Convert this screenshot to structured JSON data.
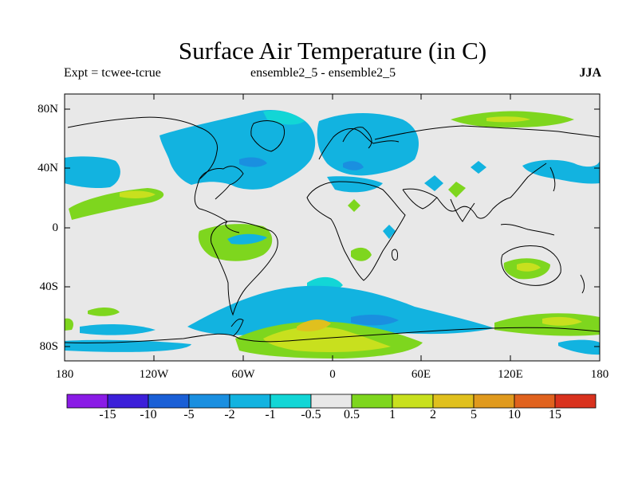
{
  "title": "Surface Air Temperature (in C)",
  "subtitle_left": "Expt = tcwee-tcrue",
  "subtitle_center": "ensemble2_5 - ensemble2_5",
  "subtitle_right": "JJA",
  "lat_labels": [
    "80N",
    "40N",
    "0",
    "40S",
    "80S"
  ],
  "lon_labels": [
    "180",
    "120W",
    "60W",
    "0",
    "60E",
    "120E",
    "180"
  ],
  "chart_data": {
    "type": "heatmap",
    "title": "Surface Air Temperature (in C)",
    "projection": "cylindrical equidistant",
    "lon_range": [
      -180,
      180
    ],
    "lat_range": [
      -90,
      90
    ],
    "season": "JJA",
    "colorbar": {
      "labels": [
        "-15",
        "-10",
        "-5",
        "-2",
        "-1",
        "-0.5",
        "0.5",
        "1",
        "2",
        "5",
        "10",
        "15"
      ],
      "colors": [
        "#8a1be6",
        "#3c1fd9",
        "#1a5fd6",
        "#1a8fe0",
        "#12b3e0",
        "#12d6d6",
        "#e8e8e8",
        "#7ed61e",
        "#c8e01e",
        "#e0c01e",
        "#e09a1e",
        "#e0621e",
        "#d9321e"
      ]
    },
    "background_color": "#e8e8e8",
    "regions": [
      {
        "level": "-1",
        "lon": [
          -180,
          -145
        ],
        "lat": [
          25,
          45
        ],
        "desc": "cool anomaly North Pacific"
      },
      {
        "level": "-1",
        "lon": [
          -110,
          0
        ],
        "lat": [
          30,
          75
        ],
        "desc": "cool anomaly North America / North Atlantic"
      },
      {
        "level": "-1",
        "lon": [
          -10,
          60
        ],
        "lat": [
          35,
          75
        ],
        "desc": "cool anomaly Europe / Mediterranean"
      },
      {
        "level": "1",
        "lon": [
          80,
          160
        ],
        "lat": [
          58,
          72
        ],
        "desc": "warm anomaly Siberia"
      },
      {
        "level": "1",
        "lon": [
          -175,
          -120
        ],
        "lat": [
          8,
          22
        ],
        "desc": "warm anomaly tropical Pacific"
      },
      {
        "level": "2",
        "lon": [
          -150,
          -135
        ],
        "lat": [
          15,
          20
        ],
        "desc": "warm core tropical Pacific"
      },
      {
        "level": "1",
        "lon": [
          -80,
          -40
        ],
        "lat": [
          -22,
          0
        ],
        "desc": "warm anomaly South America"
      },
      {
        "level": "-1",
        "lon": [
          -75,
          -40
        ],
        "lat": [
          -12,
          -2
        ],
        "desc": "cool anomaly Amazon"
      },
      {
        "level": "1",
        "lon": [
          115,
          150
        ],
        "lat": [
          -35,
          -20
        ],
        "desc": "warm anomaly Australia"
      },
      {
        "level": "-1",
        "lon": [
          -100,
          65
        ],
        "lat": [
          -75,
          -40
        ],
        "desc": "cool anomaly Southern Ocean"
      },
      {
        "level": "1",
        "lon": [
          -60,
          60
        ],
        "lat": [
          -90,
          -70
        ],
        "desc": "warm anomaly Antarctica"
      },
      {
        "level": "5",
        "lon": [
          -20,
          0
        ],
        "lat": [
          -75,
          -65
        ],
        "desc": "warm core Antarctica"
      }
    ]
  }
}
